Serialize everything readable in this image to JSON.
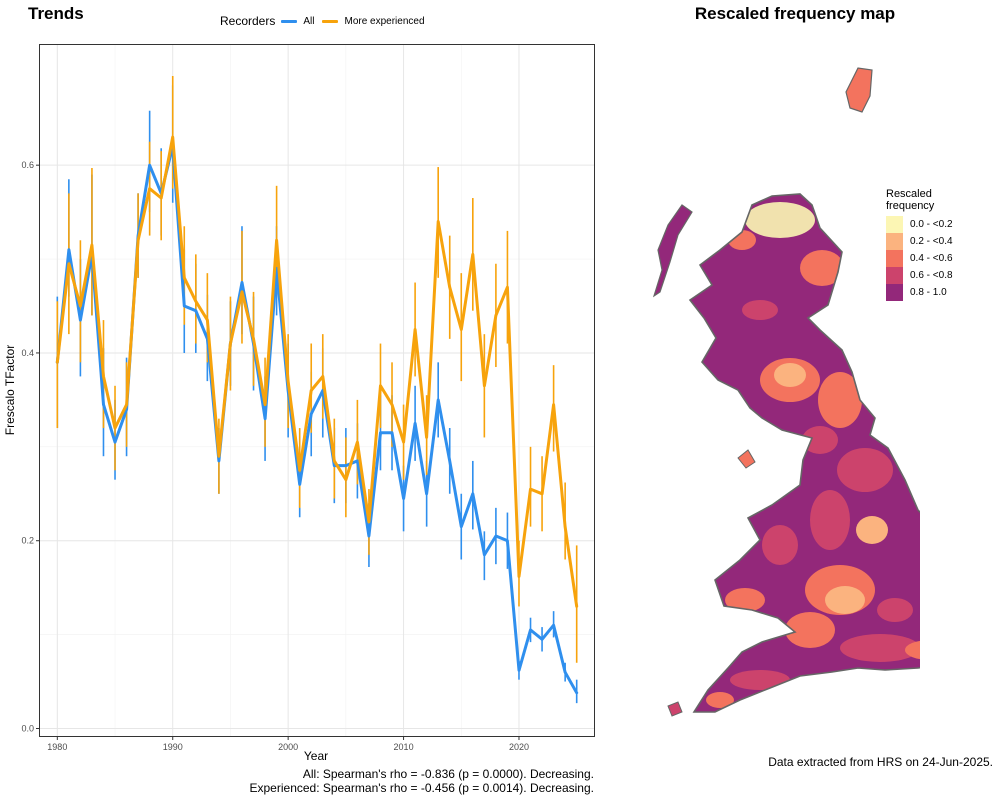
{
  "trends_panel": {
    "title": "Trends"
  },
  "map_panel": {
    "title": "Rescaled frequency map"
  },
  "chart_data": {
    "type": "line",
    "title": "Trends",
    "xlabel": "Year",
    "ylabel": "Frescalo TFactor",
    "xlim": [
      1978.5,
      2026.5
    ],
    "ylim": [
      -0.008,
      0.728
    ],
    "x_ticks": [
      1980,
      1990,
      2000,
      2010,
      2020
    ],
    "y_ticks": [
      0.0,
      0.2,
      0.4,
      0.6
    ],
    "y_tick_labels": [
      "0.0",
      "0.2",
      "0.4",
      "0.6"
    ],
    "grid": true,
    "legend": {
      "title": "Recorders",
      "position": "top"
    },
    "x": [
      1980,
      1981,
      1982,
      1983,
      1984,
      1985,
      1986,
      1987,
      1988,
      1989,
      1990,
      1991,
      1992,
      1993,
      1994,
      1995,
      1996,
      1997,
      1998,
      1999,
      2000,
      2001,
      2002,
      2003,
      2004,
      2005,
      2006,
      2007,
      2008,
      2009,
      2010,
      2011,
      2012,
      2013,
      2014,
      2015,
      2016,
      2017,
      2018,
      2019,
      2020,
      2021,
      2022,
      2023,
      2024,
      2025
    ],
    "series": [
      {
        "name": "All",
        "color": "#2f8fee",
        "values": [
          0.39,
          0.51,
          0.435,
          0.505,
          0.345,
          0.305,
          0.34,
          0.525,
          0.6,
          0.57,
          0.62,
          0.45,
          0.445,
          0.415,
          0.285,
          0.41,
          0.475,
          0.41,
          0.33,
          0.49,
          0.36,
          0.26,
          0.335,
          0.36,
          0.28,
          0.28,
          0.285,
          0.205,
          0.315,
          0.315,
          0.245,
          0.325,
          0.25,
          0.35,
          0.285,
          0.215,
          0.25,
          0.185,
          0.205,
          0.2,
          0.062,
          0.105,
          0.095,
          0.11,
          0.06,
          0.038
        ],
        "lower": [
          0.32,
          0.46,
          0.375,
          0.44,
          0.29,
          0.265,
          0.29,
          0.48,
          0.55,
          0.525,
          0.56,
          0.4,
          0.4,
          0.37,
          0.25,
          0.365,
          0.42,
          0.36,
          0.285,
          0.44,
          0.31,
          0.225,
          0.29,
          0.31,
          0.24,
          0.24,
          0.245,
          0.172,
          0.275,
          0.275,
          0.21,
          0.285,
          0.215,
          0.31,
          0.25,
          0.18,
          0.212,
          0.158,
          0.175,
          0.17,
          0.052,
          0.092,
          0.082,
          0.097,
          0.05,
          0.027
        ],
        "upper": [
          0.46,
          0.585,
          0.5,
          0.59,
          0.405,
          0.35,
          0.395,
          0.57,
          0.658,
          0.618,
          0.685,
          0.51,
          0.495,
          0.462,
          0.32,
          0.455,
          0.535,
          0.46,
          0.375,
          0.535,
          0.41,
          0.3,
          0.38,
          0.405,
          0.32,
          0.32,
          0.325,
          0.24,
          0.355,
          0.355,
          0.28,
          0.365,
          0.285,
          0.39,
          0.32,
          0.25,
          0.285,
          0.21,
          0.235,
          0.23,
          0.072,
          0.118,
          0.108,
          0.125,
          0.07,
          0.052
        ]
      },
      {
        "name": "More experienced",
        "color": "#f7a30c",
        "values": [
          0.39,
          0.495,
          0.45,
          0.515,
          0.375,
          0.32,
          0.345,
          0.52,
          0.575,
          0.565,
          0.63,
          0.48,
          0.455,
          0.435,
          0.29,
          0.41,
          0.465,
          0.415,
          0.345,
          0.52,
          0.37,
          0.275,
          0.36,
          0.375,
          0.285,
          0.265,
          0.305,
          0.22,
          0.365,
          0.345,
          0.305,
          0.425,
          0.31,
          0.54,
          0.47,
          0.425,
          0.505,
          0.365,
          0.44,
          0.47,
          0.162,
          0.255,
          0.25,
          0.345,
          0.215,
          0.13
        ],
        "lower": [
          0.32,
          0.42,
          0.39,
          0.44,
          0.32,
          0.275,
          0.3,
          0.48,
          0.525,
          0.52,
          0.575,
          0.43,
          0.41,
          0.39,
          0.25,
          0.36,
          0.41,
          0.365,
          0.3,
          0.47,
          0.32,
          0.235,
          0.315,
          0.33,
          0.245,
          0.225,
          0.26,
          0.185,
          0.32,
          0.3,
          0.265,
          0.375,
          0.27,
          0.48,
          0.415,
          0.37,
          0.445,
          0.31,
          0.385,
          0.41,
          0.13,
          0.215,
          0.21,
          0.295,
          0.18,
          0.07
        ],
        "upper": [
          0.455,
          0.57,
          0.52,
          0.597,
          0.435,
          0.365,
          0.39,
          0.57,
          0.625,
          0.615,
          0.695,
          0.535,
          0.505,
          0.485,
          0.33,
          0.46,
          0.53,
          0.465,
          0.395,
          0.578,
          0.42,
          0.32,
          0.41,
          0.42,
          0.33,
          0.31,
          0.35,
          0.255,
          0.41,
          0.39,
          0.345,
          0.475,
          0.355,
          0.598,
          0.525,
          0.485,
          0.565,
          0.42,
          0.495,
          0.53,
          0.2,
          0.3,
          0.29,
          0.387,
          0.262,
          0.195
        ]
      }
    ],
    "annotations": [
      "All: Spearman's rho = -0.836 (p = 0.0000). Decreasing.",
      "Experienced: Spearman's rho = -0.456 (p = 0.0014). Decreasing."
    ]
  },
  "map_legend": {
    "title": "Rescaled\nfrequency",
    "items": [
      {
        "label": "0.0 - <0.2",
        "color": "#fcf6b4"
      },
      {
        "label": "0.2 - <0.4",
        "color": "#fbb37f"
      },
      {
        "label": "0.4 - <0.6",
        "color": "#f3735e"
      },
      {
        "label": "0.6 - <0.8",
        "color": "#cc436c"
      },
      {
        "label": "0.8 - 1.0",
        "color": "#93287a"
      }
    ]
  },
  "source_note": "Data extracted from HRS on 24-Jun-2025."
}
